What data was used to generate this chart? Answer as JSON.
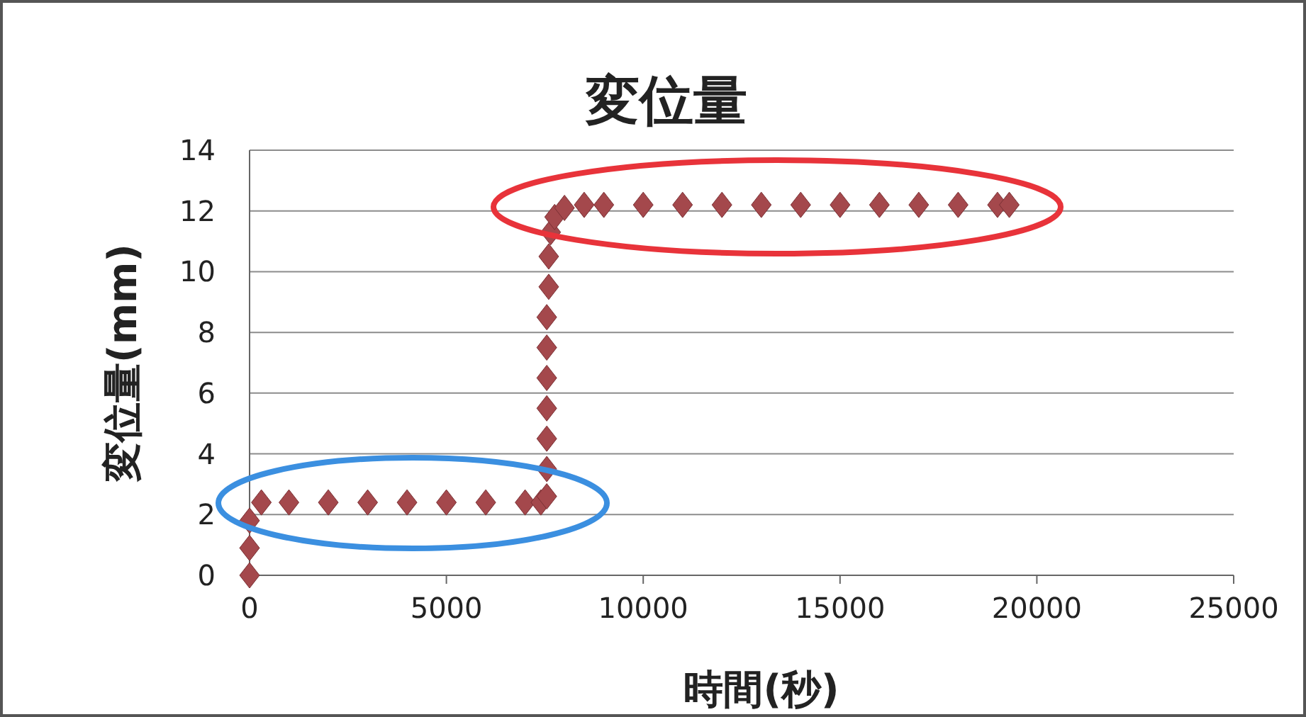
{
  "chart_data": {
    "type": "scatter",
    "title": "変位量",
    "xlabel": "時間(秒)",
    "ylabel": "変位量(mm)",
    "xlim": [
      0,
      25000
    ],
    "xticks": [
      0,
      5000,
      10000,
      15000,
      20000,
      25000
    ],
    "ylim": [
      0,
      14
    ],
    "yticks": [
      0,
      2,
      4,
      6,
      8,
      10,
      12,
      14
    ],
    "grid": "y",
    "marker": "diamond",
    "series": [
      {
        "color": "#a4484c",
        "x": [
          0,
          0,
          0,
          300,
          1000,
          2000,
          3000,
          4000,
          5000,
          6000,
          7000,
          7400,
          7550,
          7550,
          7550,
          7550,
          7550,
          7550,
          7550,
          7600,
          7600,
          7650,
          7750,
          8000,
          8500,
          9000,
          10000,
          11000,
          12000,
          13000,
          14000,
          15000,
          16000,
          17000,
          18000,
          19000,
          19300
        ],
        "values": [
          0,
          0.9,
          1.8,
          2.4,
          2.4,
          2.4,
          2.4,
          2.4,
          2.4,
          2.4,
          2.4,
          2.4,
          2.6,
          3.5,
          4.5,
          5.5,
          6.5,
          7.5,
          8.5,
          9.5,
          10.5,
          11.3,
          11.8,
          12.1,
          12.2,
          12.2,
          12.2,
          12.2,
          12.2,
          12.2,
          12.2,
          12.2,
          12.2,
          12.2,
          12.2,
          12.2,
          12.2
        ]
      }
    ]
  }
}
